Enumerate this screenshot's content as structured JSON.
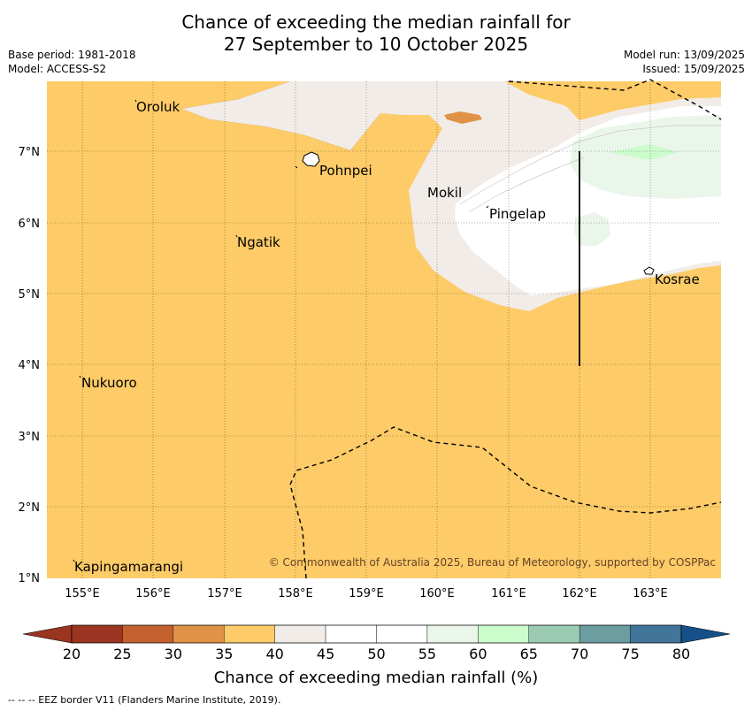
{
  "title": {
    "line1": "Chance of exceeding the median rainfall for",
    "line2": "27 September to 10 October 2025"
  },
  "meta": {
    "base_period": "Base period: 1981-2018",
    "model": "Model: ACCESS-S2",
    "model_run": "Model run: 13/09/2025",
    "issued": "Issued: 15/09/2025"
  },
  "map": {
    "lon_range": [
      154.5,
      164.0
    ],
    "lat_range": [
      1,
      8
    ],
    "x_ticks": [
      "155°E",
      "156°E",
      "157°E",
      "158°E",
      "159°E",
      "160°E",
      "161°E",
      "162°E",
      "163°E"
    ],
    "y_ticks": [
      "7°N",
      "6°N",
      "5°N",
      "4°N",
      "3°N",
      "2°N",
      "1°N"
    ],
    "places": [
      {
        "name": "Oroluk",
        "lon": 155.7,
        "lat": 7.6
      },
      {
        "name": "Pohnpei",
        "lon": 158.2,
        "lat": 6.9
      },
      {
        "name": "Mokil",
        "lon": 159.8,
        "lat": 6.7
      },
      {
        "name": "Pingelap",
        "lon": 160.7,
        "lat": 6.2
      },
      {
        "name": "Ngatik",
        "lon": 157.1,
        "lat": 5.8
      },
      {
        "name": "Kosrae",
        "lon": 163.0,
        "lat": 5.3
      },
      {
        "name": "Nukuoro",
        "lon": 154.9,
        "lat": 3.9
      },
      {
        "name": "Kapingamarangi",
        "lon": 154.8,
        "lat": 1.1
      }
    ],
    "copyright": "© Commonwealth of Australia 2025, Bureau of Meteorology, supported by COSPPac"
  },
  "colorbar": {
    "ticks": [
      "20",
      "25",
      "30",
      "35",
      "40",
      "45",
      "50",
      "55",
      "60",
      "65",
      "70",
      "75",
      "80"
    ],
    "colors": [
      "#9b3420",
      "#c4612f",
      "#e09246",
      "#fdcb67",
      "#f1ece7",
      "#ffffff",
      "#ffffff",
      "#eaf6ea",
      "#ccfbcc",
      "#9ccbb4",
      "#6b9da1",
      "#417599"
    ],
    "under_color": "#9a3520",
    "over_color": "#15508a",
    "label": "Chance of exceeding median rainfall (%)"
  },
  "footer": "--  --  -- EEZ border V11 (Flanders Marine Institute, 2019)."
}
